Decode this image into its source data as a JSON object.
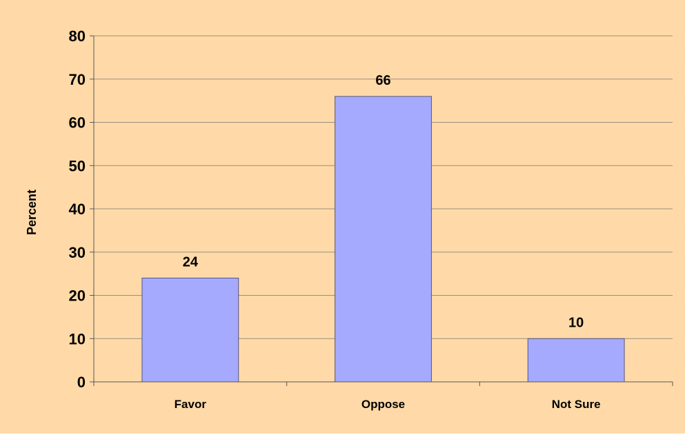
{
  "chart_data": {
    "type": "bar",
    "title": "",
    "xlabel": "",
    "ylabel": "Percent",
    "categories": [
      "Favor",
      "Oppose",
      "Not Sure"
    ],
    "values": [
      24,
      66,
      10
    ],
    "data_labels": [
      "24",
      "66",
      "10"
    ],
    "ylim": [
      0,
      80
    ],
    "y_ticks": [
      0,
      10,
      20,
      30,
      40,
      50,
      60,
      70,
      80
    ],
    "grid": true,
    "legend": "none"
  },
  "colors": {
    "background": "#FFDAA8",
    "bar_fill": "#A6AAFF",
    "bar_stroke": "#55557A",
    "grid": "#9A8E7E",
    "axis": "#555555"
  }
}
